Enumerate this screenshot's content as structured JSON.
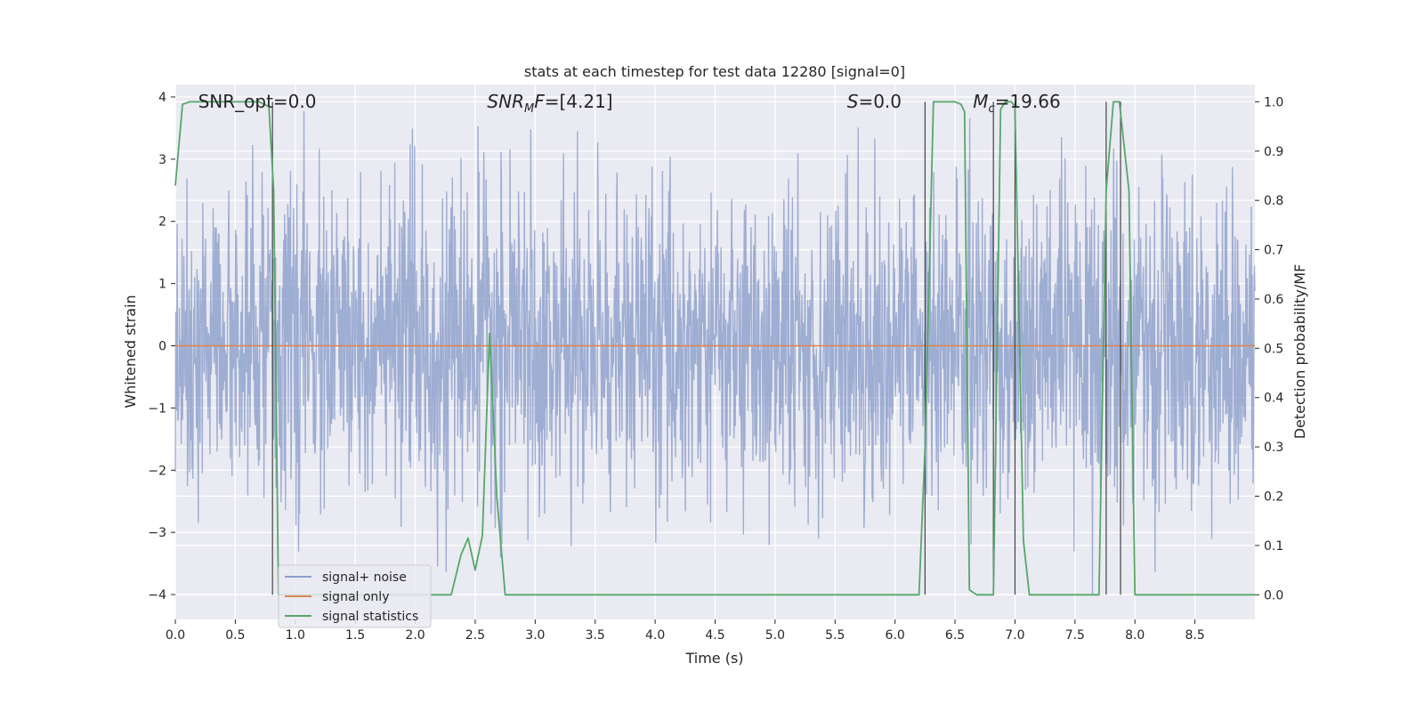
{
  "chart_data": {
    "type": "line",
    "title": "stats at each timestep for test data 12280 [signal=0]",
    "xlabel": "Time (s)",
    "ylabel_left": "Whitened strain",
    "ylabel_right": "Detection probability/MF",
    "xlim": [
      0,
      9.0
    ],
    "ylim_left": [
      -4.4,
      4.2
    ],
    "ylim_right": [
      -0.05,
      1.035
    ],
    "x_ticks": [
      "0.0",
      "0.5",
      "1.0",
      "1.5",
      "2.0",
      "2.5",
      "3.0",
      "3.5",
      "4.0",
      "4.5",
      "5.0",
      "5.5",
      "6.0",
      "6.5",
      "7.0",
      "7.5",
      "8.0",
      "8.5"
    ],
    "y_ticks_left": [
      "−4",
      "−3",
      "−2",
      "−1",
      "0",
      "1",
      "2",
      "3",
      "4"
    ],
    "y_ticks_right": [
      "0.0",
      "0.1",
      "0.2",
      "0.3",
      "0.4",
      "0.5",
      "0.6",
      "0.7",
      "0.8",
      "0.9",
      "1.0"
    ],
    "grid": true,
    "legend_position": "lower-left",
    "annotations": [
      {
        "text": "SNR_opt=0.0",
        "x": 0.19
      },
      {
        "html": "<tspan font-style='italic'>SNR</tspan><tspan font-style='italic' font-size='13' dy='5'>M</tspan><tspan font-style='italic' dy='-5'>F</tspan>=[4.21]",
        "x": 2.6
      },
      {
        "html": "<tspan font-style='italic'>S</tspan>=0.0",
        "x": 5.6
      },
      {
        "html": "<tspan font-style='italic'>M</tspan><tspan font-style='italic' font-size='13' dy='5'>c</tspan><tspan dy='-5'>=19.66</tspan>",
        "x": 6.65
      }
    ],
    "series": [
      {
        "name": "signal+ noise",
        "color": "#8da0cb",
        "description": "whitened strain noise, roughly gaussian, spanning about -4 to 4",
        "t_range": [
          0,
          9.0
        ]
      },
      {
        "name": "signal only",
        "color": "#dd8452",
        "x": [
          0,
          9.0
        ],
        "y": [
          0,
          0
        ]
      },
      {
        "name": "signal statistics",
        "color": "#55a868",
        "x": [
          0.0,
          0.06,
          0.12,
          0.4,
          0.7,
          0.78,
          0.82,
          0.86,
          0.9,
          1.0,
          1.5,
          2.0,
          2.2,
          2.3,
          2.38,
          2.44,
          2.5,
          2.56,
          2.62,
          2.68,
          2.75,
          3.0,
          3.1,
          4.0,
          5.0,
          6.0,
          6.2,
          6.25,
          6.32,
          6.4,
          6.5,
          6.55,
          6.58,
          6.62,
          6.68,
          6.75,
          6.82,
          6.88,
          6.92,
          6.97,
          7.0,
          7.07,
          7.12,
          7.5,
          7.7,
          7.76,
          7.82,
          7.87,
          7.95,
          8.0,
          8.05,
          8.5,
          9.0
        ],
        "y": [
          0.83,
          0.995,
          1.0,
          1.0,
          1.0,
          0.99,
          0.82,
          0.0,
          0.0,
          0.0,
          0.0,
          0.0,
          0.0,
          0.0,
          0.08,
          0.115,
          0.05,
          0.12,
          0.53,
          0.2,
          0.0,
          0.0,
          0.0,
          0.0,
          0.0,
          0.0,
          0.0,
          0.3,
          1.0,
          1.0,
          1.0,
          0.995,
          0.98,
          0.01,
          0.0,
          0.0,
          0.0,
          0.985,
          1.0,
          1.0,
          0.99,
          0.11,
          0.0,
          0.0,
          0.0,
          0.82,
          1.0,
          1.0,
          0.82,
          0.0,
          0.0,
          0.0,
          0.0
        ]
      }
    ],
    "vertical_markers_x": [
      0.81,
      6.25,
      6.82,
      7.0,
      7.76,
      7.88
    ]
  }
}
